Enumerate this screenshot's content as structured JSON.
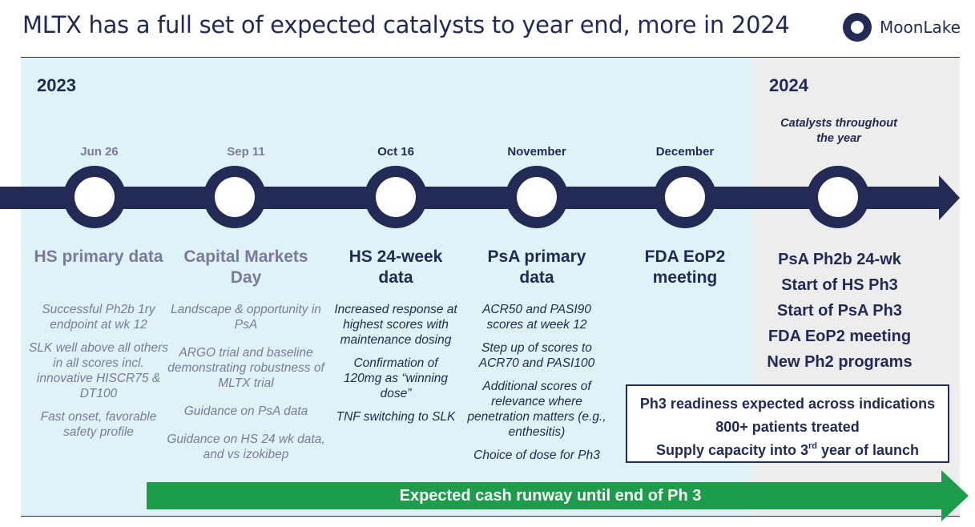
{
  "header": {
    "title": "MLTX has a full set of expected catalysts to year end, more in 2024",
    "logo_text": "MoonLake"
  },
  "years": {
    "y2023": "2023",
    "y2024": "2024"
  },
  "milestones": [
    {
      "date": "Jun 26",
      "heading": "HS primary data",
      "items": [
        "Successful Ph2b 1ry endpoint at wk 12",
        "SLK well above all others in all scores incl. innovative HISCR75 & DT100",
        "Fast onset, favorable safety profile"
      ]
    },
    {
      "date": "Sep 11",
      "heading": "Capital Markets Day",
      "items": [
        "Landscape & opportunity in PsA",
        "ARGO trial and baseline demonstrating robustness of MLTX trial",
        "Guidance on PsA data",
        "Guidance on HS 24 wk data, and vs izokibep"
      ]
    },
    {
      "date": "Oct 16",
      "heading": "HS 24-week data",
      "items": [
        "Increased response at highest scores with maintenance dosing",
        "Confirmation of 120mg as “winning dose”",
        "TNF switching to SLK"
      ]
    },
    {
      "date": "November",
      "heading": "PsA primary data",
      "items": [
        "ACR50 and PASI90 scores at week 12",
        "Step up of scores to ACR70 and PASI100",
        "Additional scores of relevance where penetration matters (e.g., enthesitis)",
        "Choice of dose for Ph3"
      ]
    },
    {
      "date": "December",
      "heading": "FDA EoP2 meeting",
      "items": []
    }
  ],
  "catalysts_2024": {
    "label": "Catalysts throughout the year",
    "items": [
      "PsA Ph2b 24-wk",
      "Start of HS Ph3",
      "Start of PsA Ph3",
      "FDA EoP2 meeting",
      "New Ph2 programs"
    ]
  },
  "readiness": {
    "line1": "Ph3 readiness expected across indications",
    "line2": "800+ patients treated",
    "line3_pre": "Supply capacity into 3",
    "line3_sup": "rd",
    "line3_post": " year of launch"
  },
  "runway": {
    "text": "Expected cash runway until end of Ph 3"
  },
  "colors": {
    "navy": "#222a55",
    "muted_purple": "#7b7a9c",
    "panel_2023": "#dff3f7",
    "panel_2024": "#ededed",
    "runway_green": "#1d9c4b"
  }
}
